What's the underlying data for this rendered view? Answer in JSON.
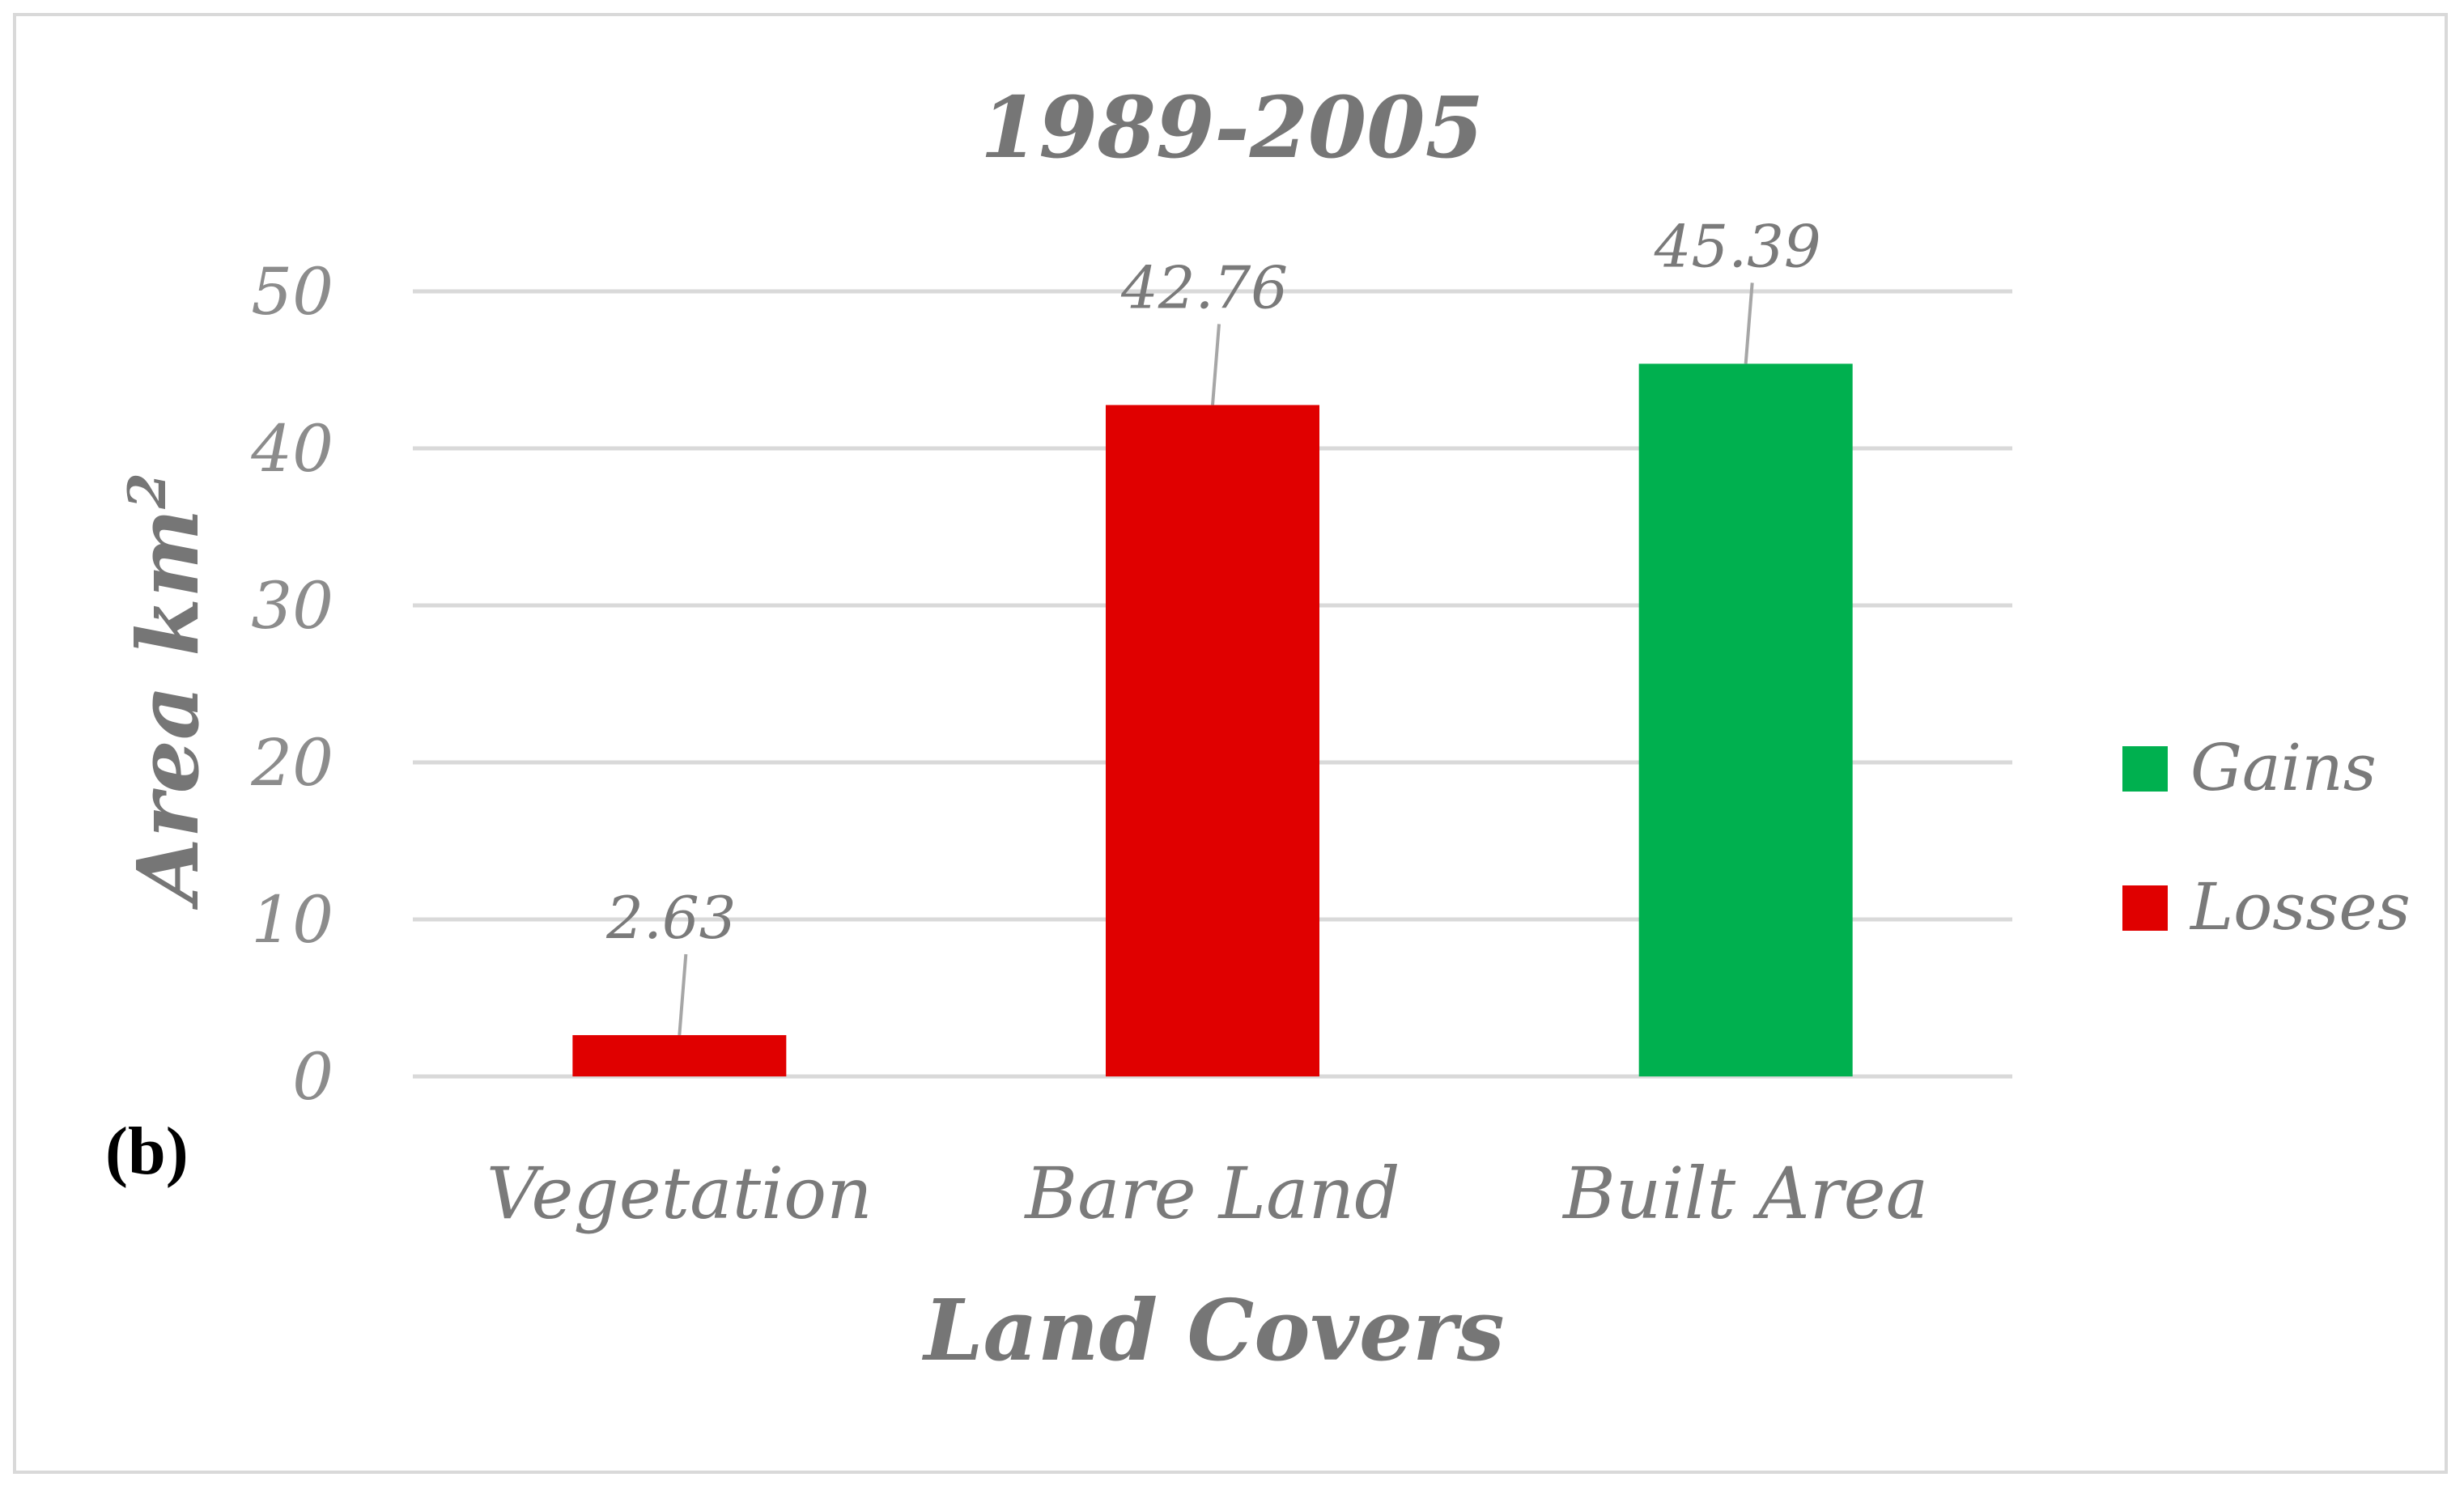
{
  "colors": {
    "gains": "#00b04f",
    "losses": "#e00000",
    "grid": "#d9d9d9",
    "text": "#7a7a7a",
    "leader": "#a6a6a6"
  },
  "chart_data": {
    "type": "bar",
    "title": "1989-2005",
    "panel_label": "(b)",
    "xlabel": "Land Covers",
    "ylabel": "Area km",
    "ylabel_superscript": "2",
    "ylim": [
      0,
      50
    ],
    "yticks": [
      "0",
      "10",
      "20",
      "30",
      "40",
      "50"
    ],
    "ytick_values": [
      0,
      10,
      20,
      30,
      40,
      50
    ],
    "categories": [
      "Vegetation",
      "Bare Land",
      "Built Area"
    ],
    "values": [
      2.63,
      42.76,
      45.39
    ],
    "value_labels": [
      "2.63",
      "42.76",
      "45.39"
    ],
    "bar_series": [
      "Losses",
      "Losses",
      "Gains"
    ],
    "grid": true,
    "legend_position": "right",
    "legend": [
      {
        "name": "Gains",
        "color_key": "gains"
      },
      {
        "name": "Losses",
        "color_key": "losses"
      }
    ]
  }
}
